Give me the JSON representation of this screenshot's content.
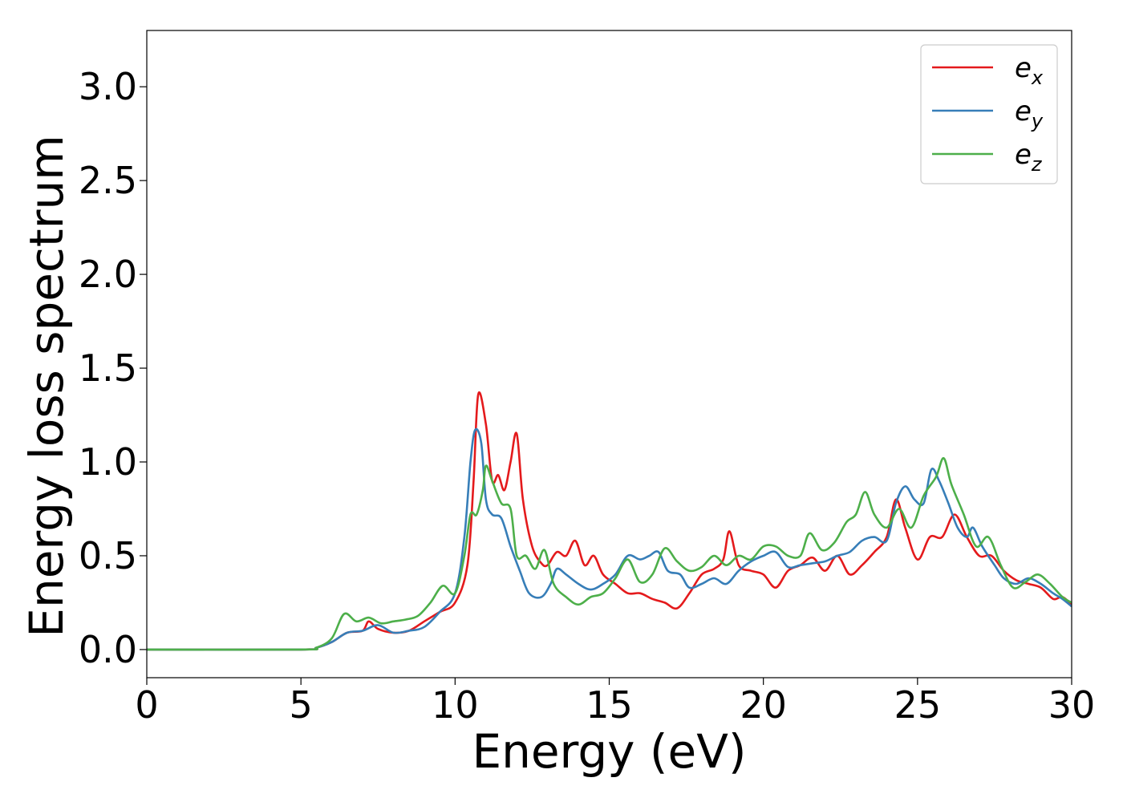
{
  "chart_data": {
    "type": "line",
    "title": "",
    "xlabel": "Energy (eV)",
    "ylabel": "Energy loss spectrum",
    "xlim": [
      0,
      30
    ],
    "ylim": [
      -0.15,
      3.3
    ],
    "xticks": [
      0,
      5,
      10,
      15,
      20,
      25,
      30
    ],
    "yticks": [
      0.0,
      0.5,
      1.0,
      1.5,
      2.0,
      2.5,
      3.0
    ],
    "xtick_labels": [
      "0",
      "5",
      "10",
      "15",
      "20",
      "25",
      "30"
    ],
    "ytick_labels": [
      "0.0",
      "0.5",
      "1.0",
      "1.5",
      "2.0",
      "2.5",
      "3.0"
    ],
    "grid": false,
    "legend_position": "top-right",
    "series": [
      {
        "name": "e_x",
        "label_base": "e",
        "label_sub": "x",
        "color": "#e41a1c",
        "points": [
          [
            0,
            0.0
          ],
          [
            5,
            0.0
          ],
          [
            5.5,
            0.01
          ],
          [
            6.0,
            0.04
          ],
          [
            6.5,
            0.09
          ],
          [
            7.0,
            0.1
          ],
          [
            7.2,
            0.15
          ],
          [
            7.5,
            0.11
          ],
          [
            8.0,
            0.09
          ],
          [
            8.5,
            0.1
          ],
          [
            9.0,
            0.15
          ],
          [
            9.5,
            0.2
          ],
          [
            10.0,
            0.25
          ],
          [
            10.4,
            0.45
          ],
          [
            10.6,
            0.9
          ],
          [
            10.75,
            1.36
          ],
          [
            11.0,
            1.2
          ],
          [
            11.2,
            0.9
          ],
          [
            11.4,
            0.93
          ],
          [
            11.6,
            0.85
          ],
          [
            11.8,
            1.0
          ],
          [
            12.0,
            1.15
          ],
          [
            12.2,
            0.8
          ],
          [
            12.5,
            0.55
          ],
          [
            12.8,
            0.46
          ],
          [
            13.0,
            0.45
          ],
          [
            13.3,
            0.52
          ],
          [
            13.6,
            0.5
          ],
          [
            13.9,
            0.58
          ],
          [
            14.2,
            0.45
          ],
          [
            14.5,
            0.5
          ],
          [
            14.8,
            0.4
          ],
          [
            15.2,
            0.35
          ],
          [
            15.6,
            0.3
          ],
          [
            16.0,
            0.3
          ],
          [
            16.4,
            0.27
          ],
          [
            16.8,
            0.25
          ],
          [
            17.2,
            0.22
          ],
          [
            17.6,
            0.3
          ],
          [
            18.0,
            0.4
          ],
          [
            18.4,
            0.43
          ],
          [
            18.7,
            0.48
          ],
          [
            18.9,
            0.63
          ],
          [
            19.2,
            0.45
          ],
          [
            19.6,
            0.42
          ],
          [
            20.0,
            0.4
          ],
          [
            20.4,
            0.33
          ],
          [
            20.8,
            0.42
          ],
          [
            21.2,
            0.45
          ],
          [
            21.6,
            0.49
          ],
          [
            22.0,
            0.42
          ],
          [
            22.4,
            0.5
          ],
          [
            22.8,
            0.4
          ],
          [
            23.2,
            0.45
          ],
          [
            23.6,
            0.52
          ],
          [
            24.0,
            0.6
          ],
          [
            24.3,
            0.8
          ],
          [
            24.6,
            0.65
          ],
          [
            25.0,
            0.48
          ],
          [
            25.4,
            0.6
          ],
          [
            25.8,
            0.6
          ],
          [
            26.2,
            0.72
          ],
          [
            26.6,
            0.6
          ],
          [
            27.0,
            0.5
          ],
          [
            27.4,
            0.5
          ],
          [
            27.8,
            0.42
          ],
          [
            28.2,
            0.37
          ],
          [
            28.6,
            0.35
          ],
          [
            29.0,
            0.33
          ],
          [
            29.4,
            0.27
          ],
          [
            29.7,
            0.28
          ],
          [
            30.0,
            0.24
          ]
        ]
      },
      {
        "name": "e_y",
        "label_base": "e",
        "label_sub": "y",
        "color": "#377eb8",
        "points": [
          [
            0,
            0.0
          ],
          [
            5,
            0.0
          ],
          [
            5.5,
            0.01
          ],
          [
            6.0,
            0.04
          ],
          [
            6.5,
            0.09
          ],
          [
            7.0,
            0.1
          ],
          [
            7.5,
            0.13
          ],
          [
            8.0,
            0.09
          ],
          [
            8.5,
            0.1
          ],
          [
            9.0,
            0.12
          ],
          [
            9.5,
            0.2
          ],
          [
            10.0,
            0.3
          ],
          [
            10.3,
            0.6
          ],
          [
            10.5,
            1.0
          ],
          [
            10.65,
            1.17
          ],
          [
            10.85,
            1.1
          ],
          [
            11.0,
            0.8
          ],
          [
            11.2,
            0.72
          ],
          [
            11.5,
            0.7
          ],
          [
            11.8,
            0.55
          ],
          [
            12.1,
            0.42
          ],
          [
            12.4,
            0.3
          ],
          [
            12.8,
            0.28
          ],
          [
            13.1,
            0.35
          ],
          [
            13.3,
            0.43
          ],
          [
            13.6,
            0.4
          ],
          [
            14.0,
            0.35
          ],
          [
            14.4,
            0.32
          ],
          [
            14.8,
            0.35
          ],
          [
            15.2,
            0.4
          ],
          [
            15.6,
            0.5
          ],
          [
            16.0,
            0.48
          ],
          [
            16.3,
            0.5
          ],
          [
            16.6,
            0.52
          ],
          [
            16.9,
            0.42
          ],
          [
            17.3,
            0.4
          ],
          [
            17.6,
            0.33
          ],
          [
            18.0,
            0.35
          ],
          [
            18.4,
            0.38
          ],
          [
            18.8,
            0.35
          ],
          [
            19.2,
            0.42
          ],
          [
            19.6,
            0.47
          ],
          [
            20.0,
            0.5
          ],
          [
            20.4,
            0.52
          ],
          [
            20.8,
            0.44
          ],
          [
            21.2,
            0.45
          ],
          [
            21.6,
            0.46
          ],
          [
            22.0,
            0.47
          ],
          [
            22.4,
            0.5
          ],
          [
            22.8,
            0.52
          ],
          [
            23.2,
            0.58
          ],
          [
            23.6,
            0.6
          ],
          [
            24.0,
            0.58
          ],
          [
            24.3,
            0.78
          ],
          [
            24.6,
            0.87
          ],
          [
            24.9,
            0.8
          ],
          [
            25.2,
            0.78
          ],
          [
            25.45,
            0.96
          ],
          [
            25.7,
            0.9
          ],
          [
            26.0,
            0.78
          ],
          [
            26.3,
            0.65
          ],
          [
            26.6,
            0.6
          ],
          [
            26.8,
            0.65
          ],
          [
            27.1,
            0.55
          ],
          [
            27.5,
            0.45
          ],
          [
            27.8,
            0.38
          ],
          [
            28.2,
            0.35
          ],
          [
            28.6,
            0.38
          ],
          [
            29.0,
            0.35
          ],
          [
            29.4,
            0.3
          ],
          [
            29.7,
            0.27
          ],
          [
            30.0,
            0.23
          ]
        ]
      },
      {
        "name": "e_z",
        "label_base": "e",
        "label_sub": "z",
        "color": "#4daf4a",
        "points": [
          [
            0,
            0.0
          ],
          [
            5,
            0.0
          ],
          [
            5.5,
            0.01
          ],
          [
            6.0,
            0.06
          ],
          [
            6.4,
            0.19
          ],
          [
            6.8,
            0.15
          ],
          [
            7.2,
            0.17
          ],
          [
            7.6,
            0.14
          ],
          [
            8.0,
            0.15
          ],
          [
            8.4,
            0.16
          ],
          [
            8.8,
            0.18
          ],
          [
            9.2,
            0.25
          ],
          [
            9.6,
            0.34
          ],
          [
            10.0,
            0.3
          ],
          [
            10.3,
            0.5
          ],
          [
            10.5,
            0.72
          ],
          [
            10.7,
            0.72
          ],
          [
            10.9,
            0.85
          ],
          [
            11.0,
            0.98
          ],
          [
            11.2,
            0.9
          ],
          [
            11.5,
            0.78
          ],
          [
            11.8,
            0.75
          ],
          [
            12.0,
            0.5
          ],
          [
            12.3,
            0.5
          ],
          [
            12.6,
            0.43
          ],
          [
            12.9,
            0.53
          ],
          [
            13.2,
            0.35
          ],
          [
            13.6,
            0.28
          ],
          [
            14.0,
            0.24
          ],
          [
            14.4,
            0.28
          ],
          [
            14.8,
            0.3
          ],
          [
            15.2,
            0.38
          ],
          [
            15.6,
            0.48
          ],
          [
            16.0,
            0.36
          ],
          [
            16.4,
            0.4
          ],
          [
            16.8,
            0.54
          ],
          [
            17.2,
            0.47
          ],
          [
            17.6,
            0.42
          ],
          [
            18.0,
            0.44
          ],
          [
            18.4,
            0.5
          ],
          [
            18.8,
            0.45
          ],
          [
            19.2,
            0.5
          ],
          [
            19.6,
            0.48
          ],
          [
            20.0,
            0.55
          ],
          [
            20.4,
            0.55
          ],
          [
            20.8,
            0.5
          ],
          [
            21.2,
            0.5
          ],
          [
            21.5,
            0.62
          ],
          [
            21.9,
            0.53
          ],
          [
            22.3,
            0.57
          ],
          [
            22.7,
            0.68
          ],
          [
            23.0,
            0.72
          ],
          [
            23.3,
            0.84
          ],
          [
            23.6,
            0.72
          ],
          [
            24.0,
            0.65
          ],
          [
            24.4,
            0.75
          ],
          [
            24.8,
            0.65
          ],
          [
            25.2,
            0.82
          ],
          [
            25.6,
            0.92
          ],
          [
            25.85,
            1.02
          ],
          [
            26.1,
            0.88
          ],
          [
            26.5,
            0.72
          ],
          [
            26.9,
            0.55
          ],
          [
            27.3,
            0.6
          ],
          [
            27.7,
            0.45
          ],
          [
            28.1,
            0.33
          ],
          [
            28.5,
            0.36
          ],
          [
            28.9,
            0.4
          ],
          [
            29.3,
            0.35
          ],
          [
            29.7,
            0.28
          ],
          [
            30.0,
            0.25
          ]
        ]
      }
    ]
  }
}
